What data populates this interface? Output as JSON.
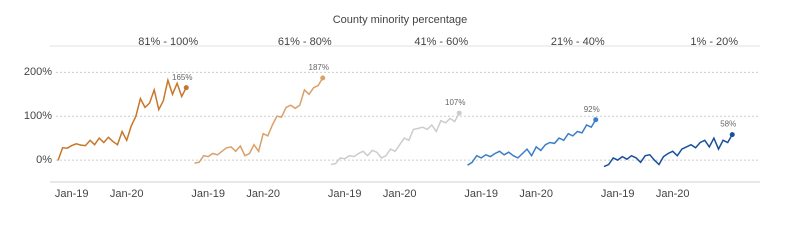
{
  "chart_data": {
    "type": "line",
    "title": "County minority percentage",
    "ylim": [
      -50,
      260
    ],
    "yticks": [
      {
        "value": 0,
        "label": "0%"
      },
      {
        "value": 100,
        "label": "100%"
      },
      {
        "value": 200,
        "label": "200%"
      }
    ],
    "grid": true,
    "categories": [
      null,
      null,
      null,
      "Jan-19",
      null,
      null,
      null,
      null,
      null,
      null,
      null,
      null,
      null,
      null,
      null,
      "Jan-20",
      null,
      null,
      null,
      null,
      null,
      null,
      null,
      null,
      null,
      null,
      null,
      null,
      null
    ],
    "panels": [
      {
        "title": "81% - 100%",
        "color": "#c8762a",
        "values": [
          -1,
          28,
          27,
          33,
          37,
          34,
          33,
          45,
          35,
          50,
          40,
          52,
          42,
          35,
          65,
          45,
          78,
          100,
          140,
          120,
          130,
          160,
          115,
          135,
          182,
          150,
          175,
          145,
          165
        ],
        "value_labels": [
          null,
          null,
          null,
          null,
          null,
          null,
          null,
          null,
          null,
          null,
          null,
          null,
          null,
          null,
          null,
          null,
          null,
          null,
          null,
          null,
          null,
          null,
          null,
          null,
          null,
          null,
          null,
          null,
          "165%"
        ]
      },
      {
        "title": "61% - 80%",
        "color": "#d9a06a",
        "values": [
          -7,
          -5,
          10,
          8,
          15,
          12,
          20,
          28,
          30,
          20,
          32,
          10,
          15,
          35,
          20,
          60,
          55,
          80,
          100,
          98,
          120,
          125,
          118,
          125,
          160,
          150,
          165,
          170,
          187
        ],
        "value_labels": [
          null,
          null,
          null,
          null,
          null,
          null,
          null,
          null,
          null,
          null,
          null,
          null,
          null,
          null,
          null,
          null,
          null,
          null,
          null,
          null,
          null,
          null,
          null,
          null,
          null,
          null,
          null,
          null,
          "187%"
        ]
      },
      {
        "title": "41% - 60%",
        "color": "#cccccc",
        "values": [
          -10,
          -8,
          5,
          3,
          10,
          8,
          15,
          20,
          10,
          22,
          18,
          5,
          10,
          25,
          20,
          35,
          50,
          45,
          70,
          72,
          75,
          70,
          80,
          65,
          90,
          85,
          95,
          88,
          107
        ],
        "value_labels": [
          null,
          null,
          null,
          null,
          null,
          null,
          null,
          null,
          null,
          null,
          null,
          null,
          null,
          null,
          null,
          null,
          null,
          null,
          null,
          null,
          null,
          null,
          null,
          null,
          null,
          null,
          null,
          null,
          "107%"
        ]
      },
      {
        "title": "21% - 40%",
        "color": "#3a7ec8",
        "values": [
          -12,
          -5,
          10,
          5,
          12,
          8,
          15,
          20,
          12,
          18,
          10,
          5,
          15,
          25,
          10,
          30,
          22,
          35,
          40,
          38,
          50,
          45,
          60,
          55,
          65,
          62,
          80,
          75,
          92
        ],
        "value_labels": [
          null,
          null,
          null,
          null,
          null,
          null,
          null,
          null,
          null,
          null,
          null,
          null,
          null,
          null,
          null,
          null,
          null,
          null,
          null,
          null,
          null,
          null,
          null,
          null,
          null,
          null,
          null,
          null,
          "92%"
        ]
      },
      {
        "title": "1% - 20%",
        "color": "#1a4f9c",
        "values": [
          -15,
          -10,
          5,
          0,
          8,
          2,
          10,
          5,
          -5,
          10,
          12,
          0,
          -10,
          8,
          15,
          20,
          10,
          25,
          30,
          35,
          28,
          40,
          45,
          30,
          50,
          25,
          45,
          40,
          58
        ],
        "value_labels": [
          null,
          null,
          null,
          null,
          null,
          null,
          null,
          null,
          null,
          null,
          null,
          null,
          null,
          null,
          null,
          null,
          null,
          null,
          null,
          null,
          null,
          null,
          null,
          null,
          null,
          null,
          null,
          null,
          "58%"
        ]
      }
    ]
  }
}
